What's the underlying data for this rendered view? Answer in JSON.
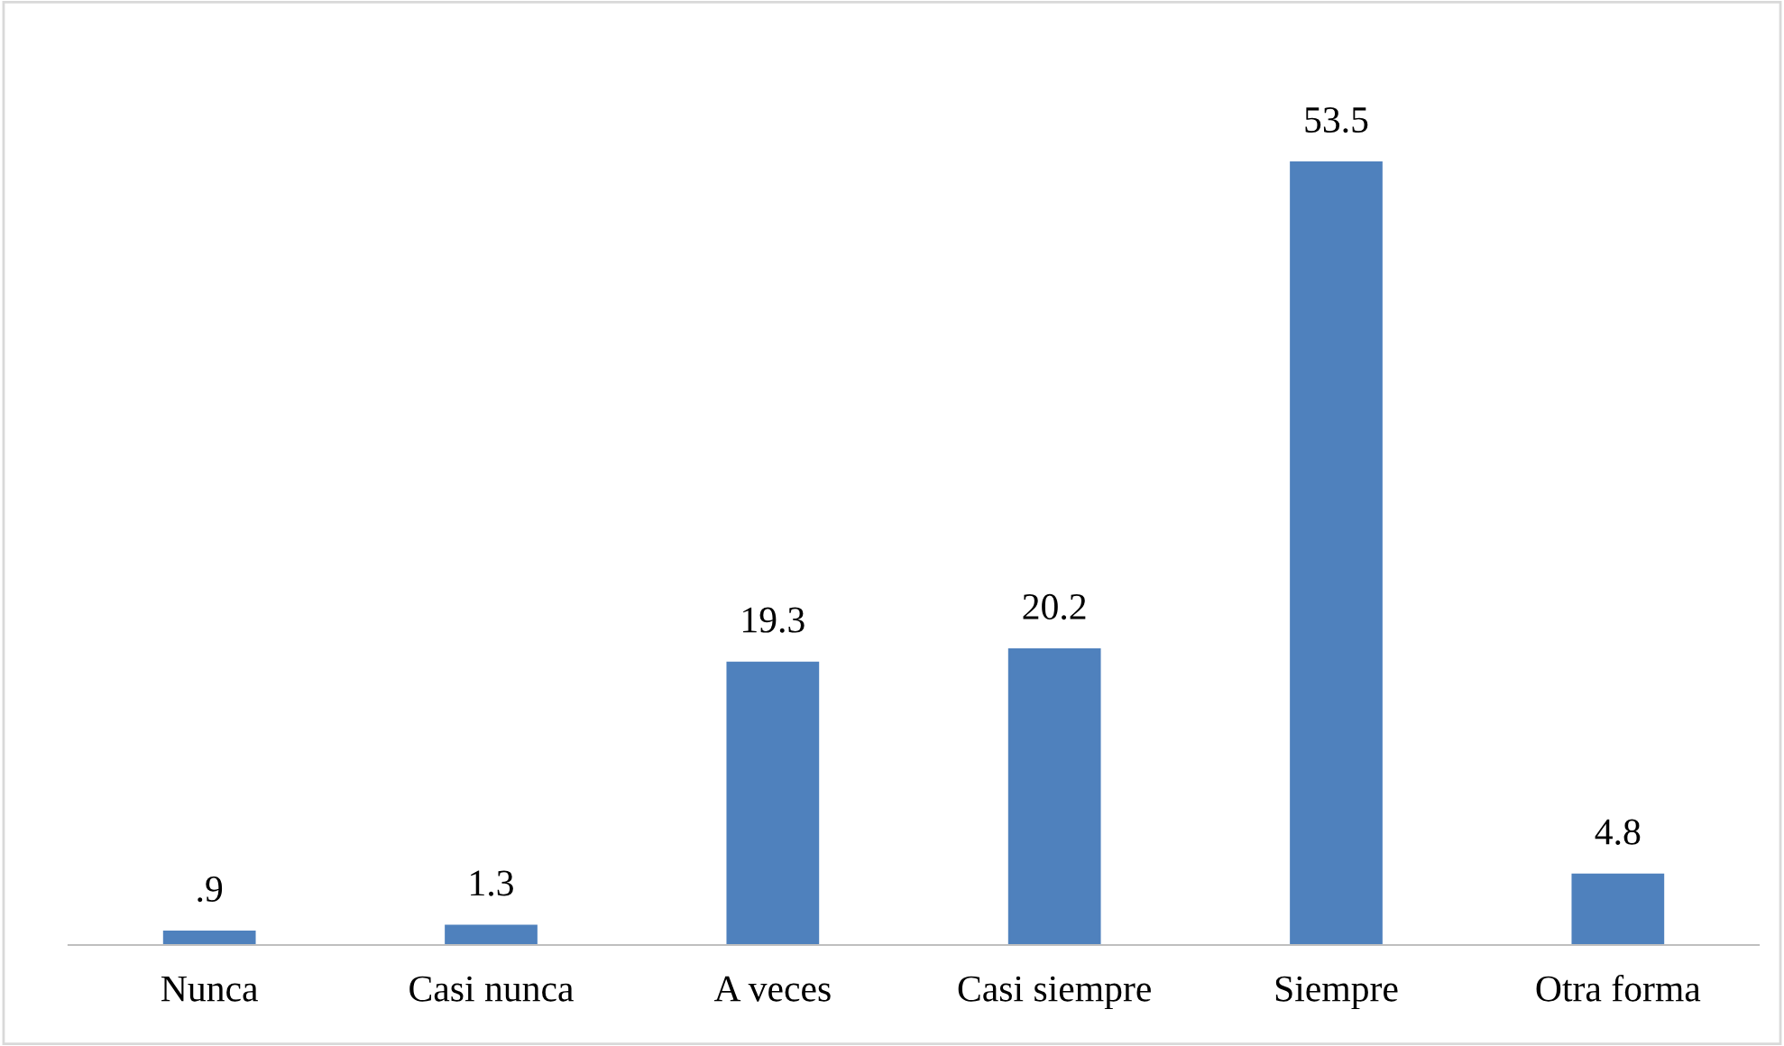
{
  "chart_data": {
    "type": "bar",
    "categories": [
      "Nunca",
      "Casi nunca",
      "A veces",
      "Casi siempre",
      "Siempre",
      "Otra forma"
    ],
    "values": [
      0.9,
      1.3,
      19.3,
      20.2,
      53.5,
      4.8
    ],
    "value_labels": [
      ".9",
      "1.3",
      "19.3",
      "20.2",
      "53.5",
      "4.8"
    ],
    "color": "#4f81bd",
    "grid": false,
    "legend": false
  }
}
